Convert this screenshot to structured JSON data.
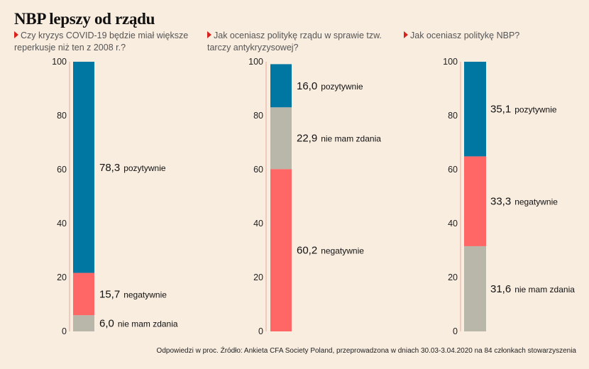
{
  "title": "NBP lepszy od rządu",
  "footer": "Odpowiedzi w proc. Źródło: Ankieta CFA Society Poland, przeprowadzona w dniach 30.03-3.04.2020 na 84 członkach stowarzyszenia",
  "colors": {
    "pozytywnie": "#0077a3",
    "negatywnie": "#ff6666",
    "nie mam zdania": "#b9b6aa",
    "axis": "#e3a99a",
    "marker": "#d6231e"
  },
  "chart_data": [
    {
      "type": "bar",
      "stacked": true,
      "title": "Czy kryzys COVID-19 będzie miał większe reperkusje niż ten z 2008 r.?",
      "ylim": [
        0,
        100
      ],
      "yticks": [
        "0",
        "20",
        "40",
        "60",
        "80",
        "100"
      ],
      "series": [
        {
          "name": "nie mam zdania",
          "value": 6.0,
          "label": "6,0"
        },
        {
          "name": "negatywnie",
          "value": 15.7,
          "label": "15,7"
        },
        {
          "name": "pozytywnie",
          "value": 78.3,
          "label": "78,3"
        }
      ]
    },
    {
      "type": "bar",
      "stacked": true,
      "title": "Jak oceniasz politykę rządu w sprawie tzw. tarczy antykryzysowej?",
      "ylim": [
        0,
        100
      ],
      "yticks": [
        "0",
        "20",
        "40",
        "60",
        "80",
        "100"
      ],
      "series": [
        {
          "name": "negatywnie",
          "value": 60.2,
          "label": "60,2"
        },
        {
          "name": "nie mam zdania",
          "value": 22.9,
          "label": "22,9"
        },
        {
          "name": "pozytywnie",
          "value": 16.0,
          "label": "16,0"
        }
      ]
    },
    {
      "type": "bar",
      "stacked": true,
      "title": "Jak oceniasz politykę NBP?",
      "ylim": [
        0,
        100
      ],
      "yticks": [
        "0",
        "20",
        "40",
        "60",
        "80",
        "100"
      ],
      "series": [
        {
          "name": "nie mam zdania",
          "value": 31.6,
          "label": "31,6"
        },
        {
          "name": "negatywnie",
          "value": 33.3,
          "label": "33,3"
        },
        {
          "name": "pozytywnie",
          "value": 35.1,
          "label": "35,1"
        }
      ]
    }
  ]
}
